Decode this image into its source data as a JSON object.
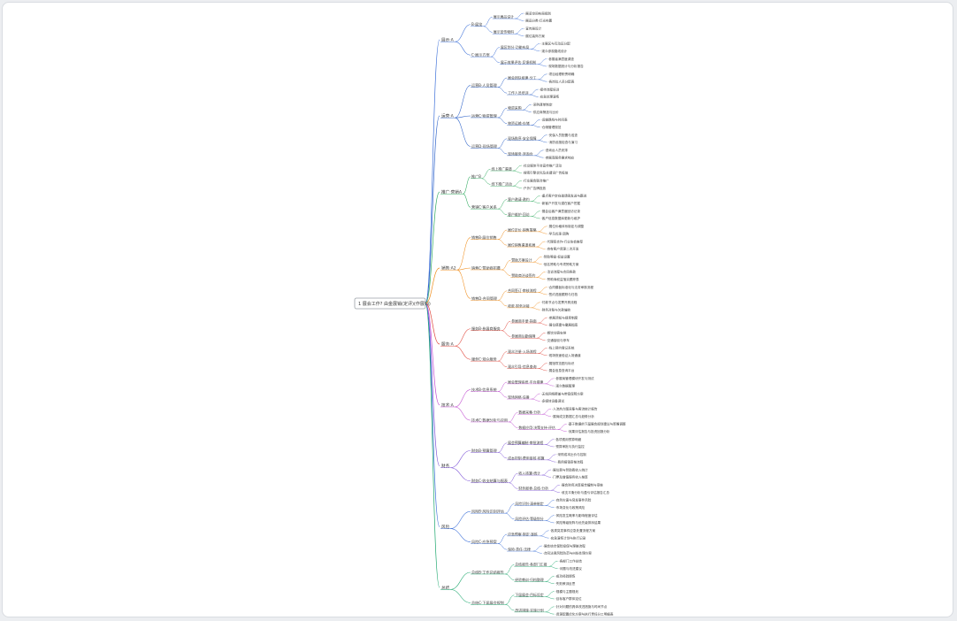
{
  "root": {
    "title": "1 展会工作? 由金展销(定评)(作展销)"
  },
  "colors": {
    "branches": [
      "#3b6fd8",
      "#2d62c8",
      "#2eaa5e",
      "#ef8c1a",
      "#e0453a",
      "#c04ad0",
      "#7a4fd6",
      "#3b6fd8",
      "#19a66b"
    ],
    "root_border": "#9aa0a6",
    "text": "#3a3a3a"
  },
  "branches": [
    {
      "label": "展示·A",
      "children": [
        {
          "label": "B·展览",
          "children": [
            {
              "label": "展示展品设计",
              "children": [
                "·展览空间布局规划",
                "·展品分类·灯光布置"
              ]
            },
            {
              "label": "展示宣传物料",
              "children": [
                "·宣传册设计",
                "·展位装饰方案"
              ]
            }
          ]
        },
        {
          "label": "C·展示方案",
          "children": [
            {
              "label": "展区划分·功能布局",
              "children": [
                "·主展区与互动区分配",
                "·观众参观路线设计"
              ]
            },
            {
              "label": "展示效果评估·反馈机制",
              "children": [
                "·参展者满意度调查",
                "·现场数据统计与分析报告"
              ]
            }
          ]
        }
      ]
    },
    {
      "label": "运营·A",
      "children": [
        {
          "label": "运营B·人员管理",
          "children": [
            {
              "label": "展会团队组建·分工",
              "children": [
                "·项目经理职责明确",
                "·各岗位人员分配表"
              ]
            },
            {
              "label": "工作人员培训",
              "children": [
                "·接待流程培训",
                "·应急处理演练"
              ]
            }
          ]
        },
        {
          "label": "运营C·物资管理",
          "children": [
            {
              "label": "物资采购",
              "children": [
                "·采购清单制定",
                "·供应商筛选与比价"
              ]
            },
            {
              "label": "物资运输·存储",
              "children": [
                "·运输路线与时间表",
                "·仓储管理规范"
              ]
            }
          ]
        },
        {
          "label": "运营D·现场管理",
          "children": [
            {
              "label": "现场秩序·安全保障",
              "children": [
                "·安保人员配置与巡查",
                "·消防设施检查与演习"
              ]
            },
            {
              "label": "现场服务·咨询台",
              "children": [
                "·咨询台人员安排",
                "·参展商服务需求响应"
              ]
            }
          ]
        }
      ]
    },
    {
      "label": "推广·营销A",
      "children": [
        {
          "label": "推广B",
          "children": [
            {
              "label": "线上推广渠道",
              "children": [
                "·社交媒体平台宣传推广活动",
                "·搜索引擎优化及关键词广告投放"
              ]
            },
            {
              "label": "线下推广活动",
              "children": [
                "·行业展会联合推广",
                "·户外广告牌投放"
              ]
            }
          ]
        },
        {
          "label": "营销C·客户关系",
          "children": [
            {
              "label": "客户邀请·邀约",
              "children": [
                "·重点客户定向邀请函发送与跟进",
                "·新客户开发与潜在客户挖掘"
              ]
            },
            {
              "label": "客户维护·回访",
              "children": [
                "·展会后客户满意度回访记录",
                "·客户信息数据库更新与维护"
              ]
            }
          ]
        }
      ]
    },
    {
      "label": "销售·A2",
      "children": [
        {
          "label": "销售B·展位销售",
          "children": [
            {
              "label": "展位定价·销售策略",
              "children": [
                "·展位价格体系制定与调整",
                "·早鸟优惠·团购"
              ]
            },
            {
              "label": "展位销售渠道拓展",
              "children": [
                "·代理商合作·行业协会推荐",
                "·自有客户资源二次开发"
              ]
            }
          ]
        },
        {
          "label": "销售C·赞助商招募",
          "children": [
            {
              "label": "赞助方案设计",
              "children": [
                "·赞助等级·权益设置",
                "·冠名赞助与专项赞助方案"
              ]
            },
            {
              "label": "赞助商洽谈签约",
              "children": [
                "·洽谈流程与合同条款",
                "·赞助商权益落实跟踪表"
              ]
            }
          ]
        },
        {
          "label": "销售D·合同管理",
          "children": [
            {
              "label": "合同签订·审核流程",
              "children": [
                "·合同模板标准化与法务审核流程",
                "·签约进度跟踪与归档"
              ]
            },
            {
              "label": "收款·财务对接",
              "children": [
                "·付款节点与发票开具流程",
                "·财务对账与欠款催收"
              ]
            }
          ]
        }
      ]
    },
    {
      "label": "服务·A",
      "children": [
        {
          "label": "服务B·参展商服务",
          "children": [
            {
              "label": "参展商手册·指南",
              "children": [
                "·参展须知与规章制度",
                "·展位搭建与撤展指南"
              ]
            },
            {
              "label": "参展商后勤保障",
              "children": [
                "·餐饮住宿安排",
                "·交通接驳与停车"
              ]
            }
          ]
        },
        {
          "label": "服务C·观众服务",
          "children": [
            {
              "label": "观众注册·入场流程",
              "children": [
                "·线上预约登记系统",
                "·现场快速验证入场通道"
              ]
            },
            {
              "label": "观众引导·信息查询",
              "children": [
                "·展馆导览图与标识",
                "·展会信息查询平台"
              ]
            }
          ]
        }
      ]
    },
    {
      "label": "技术·A",
      "children": [
        {
          "label": "技术B·信息系统",
          "children": [
            {
              "label": "展会管理系统·平台搭建",
              "children": [
                "·参展商管理模块开发与测试",
                "·观众数据管理"
              ]
            },
            {
              "label": "现场网络·设备",
              "children": [
                "·无线网络覆盖与带宽保障方案",
                "·多媒体设备调试"
              ]
            }
          ]
        },
        {
          "label": "技术C·数据分析与应用",
          "children": [
            {
              "label": "数据采集·分析",
              "children": [
                "·人流热力图采集与客流统计报告",
                "·展商成交数据汇总与趋势分析"
              ]
            },
            {
              "label": "数据应用·决策支持·评估",
              "children": [
                "·基于数据的下届展会规划建议与策略调整",
                "·效果评估报告与投资回报分析"
              ]
            }
          ]
        }
      ]
    },
    {
      "label": "财务",
      "children": [
        {
          "label": "财务B·预算管理",
          "children": [
            {
              "label": "展会预算编制·审批流程",
              "children": [
                "·各项费用预算明细",
                "·预算审批与执行监控"
              ]
            },
            {
              "label": "成本控制·费用审核·核算",
              "children": [
                "·采购成本比价与控制",
                "·费用报销审核流程"
              ]
            }
          ]
        },
        {
          "label": "财务C·收支结算与报表",
          "children": [
            {
              "label": "收入核算·统计",
              "children": [
                "·展位费与赞助费收入统计",
                "·门票及增值服务收入核算"
              ]
            },
            {
              "label": "财务报表·总结·分析",
              "children": [
                "·展会财务决算报告编制与审核",
                "·收支平衡分析与盈亏评估报告汇总"
              ]
            }
          ]
        }
      ]
    },
    {
      "label": "风险",
      "children": [
        {
          "label": "风险B·风险识别评估",
          "children": [
            {
              "label": "风险识别·清单制定",
              "children": [
                "·自然灾害与突发事件风险",
                "·市场变化与政策风险"
              ]
            },
            {
              "label": "风险评估·等级划分",
              "children": [
                "·风险发生概率与影响程度评估",
                "·风险等级矩阵与优先级排序结果"
              ]
            }
          ]
        },
        {
          "label": "风险C·应急预案",
          "children": [
            {
              "label": "应急预案·制定·演练",
              "children": [
                "·各类突发事件应急处置流程方案",
                "·应急演练计划与执行记录"
              ]
            },
            {
              "label": "保险·责任·法律",
              "children": [
                "·展会综合保险投保与理赔流程",
                "·合同法律风险防范与纠纷处理方案"
              ]
            }
          ]
        }
      ]
    },
    {
      "label": "总结",
      "children": [
        {
          "label": "总结B·工作总结报告",
          "children": [
            {
              "label": "总结报告·各部门汇报",
              "children": [
                "·各部门工作总结",
                "·问题与改进建议"
              ]
            },
            {
              "label": "经验教训·归档整理",
              "children": [
                "·成功经验提炼",
                "·失败教训反思"
              ]
            }
          ]
        },
        {
          "label": "总结C·下届展会规划",
          "children": [
            {
              "label": "下届展会·目标设定",
              "children": [
                "·规模与主题规划",
                "·目标客户群体定位"
              ]
            },
            {
              "label": "改进措施·实施计划",
              "children": [
                "·针对问题的具体改进措施与时间节点",
                "·资源配置优化方案与执行责任分工明细表"
              ]
            }
          ]
        }
      ]
    }
  ]
}
